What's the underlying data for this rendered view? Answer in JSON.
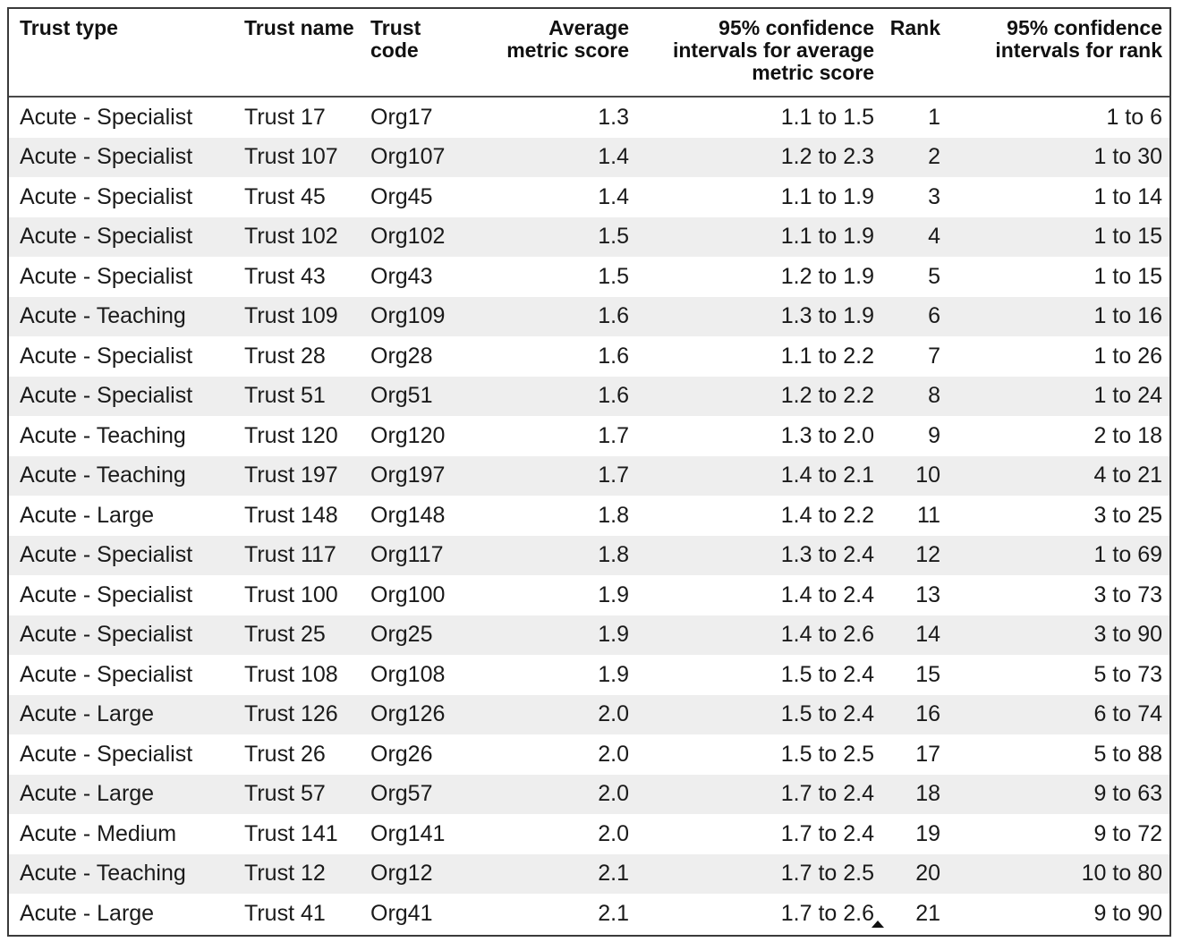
{
  "table": {
    "headers": {
      "trust_type": "Trust type",
      "trust_name": "Trust name",
      "trust_code": "Trust code",
      "avg_score": "Average metric score",
      "ci_score": "95% confidence intervals for average metric score",
      "rank": "Rank",
      "ci_rank": "95% confidence intervals for rank"
    },
    "sort": {
      "column": "rank",
      "direction": "ascending",
      "icon": "sort-ascending-icon"
    },
    "rows": [
      {
        "type": "Acute - Specialist",
        "name": "Trust 17",
        "code": "Org17",
        "score": "1.3",
        "ci": "1.1 to 1.5",
        "rank": "1",
        "ci_rank": "1 to 6"
      },
      {
        "type": "Acute - Specialist",
        "name": "Trust 107",
        "code": "Org107",
        "score": "1.4",
        "ci": "1.2 to 2.3",
        "rank": "2",
        "ci_rank": "1 to 30"
      },
      {
        "type": "Acute - Specialist",
        "name": "Trust 45",
        "code": "Org45",
        "score": "1.4",
        "ci": "1.1 to 1.9",
        "rank": "3",
        "ci_rank": "1 to 14"
      },
      {
        "type": "Acute - Specialist",
        "name": "Trust 102",
        "code": "Org102",
        "score": "1.5",
        "ci": "1.1 to 1.9",
        "rank": "4",
        "ci_rank": "1 to 15"
      },
      {
        "type": "Acute - Specialist",
        "name": "Trust 43",
        "code": "Org43",
        "score": "1.5",
        "ci": "1.2 to 1.9",
        "rank": "5",
        "ci_rank": "1 to 15"
      },
      {
        "type": "Acute - Teaching",
        "name": "Trust 109",
        "code": "Org109",
        "score": "1.6",
        "ci": "1.3 to 1.9",
        "rank": "6",
        "ci_rank": "1 to 16"
      },
      {
        "type": "Acute - Specialist",
        "name": "Trust 28",
        "code": "Org28",
        "score": "1.6",
        "ci": "1.1 to 2.2",
        "rank": "7",
        "ci_rank": "1 to 26"
      },
      {
        "type": "Acute - Specialist",
        "name": "Trust 51",
        "code": "Org51",
        "score": "1.6",
        "ci": "1.2 to 2.2",
        "rank": "8",
        "ci_rank": "1 to 24"
      },
      {
        "type": "Acute - Teaching",
        "name": "Trust 120",
        "code": "Org120",
        "score": "1.7",
        "ci": "1.3 to 2.0",
        "rank": "9",
        "ci_rank": "2 to 18"
      },
      {
        "type": "Acute - Teaching",
        "name": "Trust 197",
        "code": "Org197",
        "score": "1.7",
        "ci": "1.4 to 2.1",
        "rank": "10",
        "ci_rank": "4 to 21"
      },
      {
        "type": "Acute - Large",
        "name": "Trust 148",
        "code": "Org148",
        "score": "1.8",
        "ci": "1.4 to 2.2",
        "rank": "11",
        "ci_rank": "3 to 25"
      },
      {
        "type": "Acute - Specialist",
        "name": "Trust 117",
        "code": "Org117",
        "score": "1.8",
        "ci": "1.3 to 2.4",
        "rank": "12",
        "ci_rank": "1 to 69"
      },
      {
        "type": "Acute - Specialist",
        "name": "Trust 100",
        "code": "Org100",
        "score": "1.9",
        "ci": "1.4 to 2.4",
        "rank": "13",
        "ci_rank": "3 to 73"
      },
      {
        "type": "Acute - Specialist",
        "name": "Trust 25",
        "code": "Org25",
        "score": "1.9",
        "ci": "1.4 to 2.6",
        "rank": "14",
        "ci_rank": "3 to 90"
      },
      {
        "type": "Acute - Specialist",
        "name": "Trust 108",
        "code": "Org108",
        "score": "1.9",
        "ci": "1.5 to 2.4",
        "rank": "15",
        "ci_rank": "5 to 73"
      },
      {
        "type": "Acute - Large",
        "name": "Trust 126",
        "code": "Org126",
        "score": "2.0",
        "ci": "1.5 to 2.4",
        "rank": "16",
        "ci_rank": "6 to 74"
      },
      {
        "type": "Acute - Specialist",
        "name": "Trust 26",
        "code": "Org26",
        "score": "2.0",
        "ci": "1.5 to 2.5",
        "rank": "17",
        "ci_rank": "5 to 88"
      },
      {
        "type": "Acute - Large",
        "name": "Trust 57",
        "code": "Org57",
        "score": "2.0",
        "ci": "1.7 to 2.4",
        "rank": "18",
        "ci_rank": "9 to 63"
      },
      {
        "type": "Acute - Medium",
        "name": "Trust 141",
        "code": "Org141",
        "score": "2.0",
        "ci": "1.7 to 2.4",
        "rank": "19",
        "ci_rank": "9 to 72"
      },
      {
        "type": "Acute - Teaching",
        "name": "Trust 12",
        "code": "Org12",
        "score": "2.1",
        "ci": "1.7 to 2.5",
        "rank": "20",
        "ci_rank": "10 to 80"
      },
      {
        "type": "Acute - Large",
        "name": "Trust 41",
        "code": "Org41",
        "score": "2.1",
        "ci": "1.7 to 2.6",
        "rank": "21",
        "ci_rank": "9 to 90"
      }
    ]
  }
}
